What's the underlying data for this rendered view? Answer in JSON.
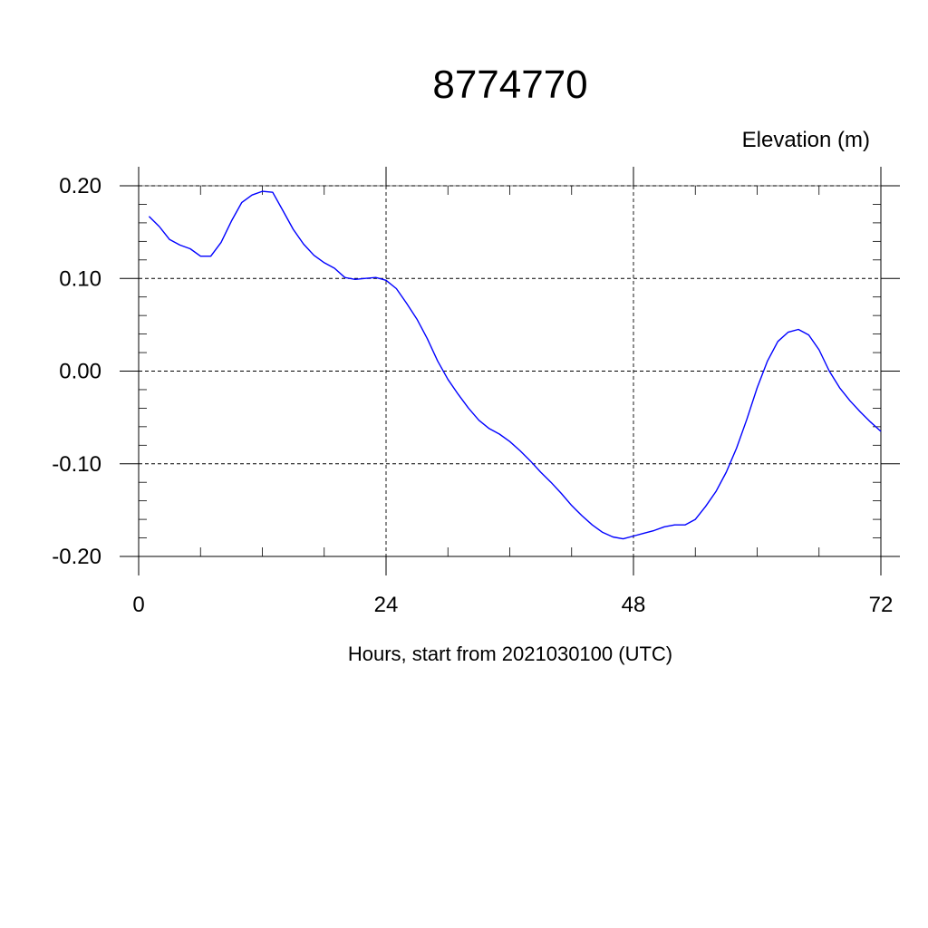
{
  "chart_data": {
    "type": "line",
    "title": "8774770",
    "ylabel": "Elevation (m)",
    "xlabel": "Hours, start from 2021030100 (UTC)",
    "xlim": [
      0,
      72
    ],
    "ylim": [
      -0.2,
      0.2
    ],
    "x_ticks": [
      0,
      24,
      48,
      72
    ],
    "x_tick_labels": [
      "0",
      "24",
      "48",
      "72"
    ],
    "y_ticks": [
      -0.2,
      -0.1,
      0.0,
      0.1,
      0.2
    ],
    "y_tick_labels": [
      "-0.20",
      "-0.10",
      "0.00",
      "0.10",
      "0.20"
    ],
    "grid": true,
    "colors": {
      "series": "#0000ff",
      "axis": "#000000"
    },
    "series": [
      {
        "x": [
          1,
          2,
          3,
          4,
          5,
          6,
          7,
          8,
          9,
          10,
          11,
          12,
          13,
          14,
          15,
          16,
          17,
          18,
          19,
          20,
          21,
          22,
          23,
          24,
          25,
          26,
          27,
          28,
          29,
          30,
          31,
          32,
          33,
          34,
          35,
          36,
          37,
          38,
          39,
          40,
          41,
          42,
          43,
          44,
          45,
          46,
          47,
          48,
          49,
          50,
          51,
          52,
          53,
          54,
          55,
          56,
          57,
          58,
          59,
          60,
          61,
          62,
          63,
          64,
          65,
          66,
          67,
          68,
          69,
          70,
          71,
          72
        ],
        "y": [
          0.167,
          0.156,
          0.142,
          0.136,
          0.132,
          0.124,
          0.124,
          0.139,
          0.162,
          0.182,
          0.19,
          0.194,
          0.193,
          0.173,
          0.153,
          0.137,
          0.125,
          0.117,
          0.111,
          0.101,
          0.099,
          0.1,
          0.101,
          0.098,
          0.089,
          0.073,
          0.056,
          0.035,
          0.011,
          -0.009,
          -0.025,
          -0.04,
          -0.053,
          -0.062,
          -0.068,
          -0.076,
          -0.086,
          -0.097,
          -0.109,
          -0.12,
          -0.132,
          -0.145,
          -0.156,
          -0.166,
          -0.174,
          -0.179,
          -0.181,
          -0.178,
          -0.175,
          -0.172,
          -0.168,
          -0.166,
          -0.166,
          -0.16,
          -0.146,
          -0.13,
          -0.109,
          -0.083,
          -0.052,
          -0.018,
          0.011,
          0.032,
          0.042,
          0.045,
          0.039,
          0.023,
          0.0,
          -0.018,
          -0.032,
          -0.044,
          -0.055,
          -0.065
        ]
      }
    ]
  }
}
